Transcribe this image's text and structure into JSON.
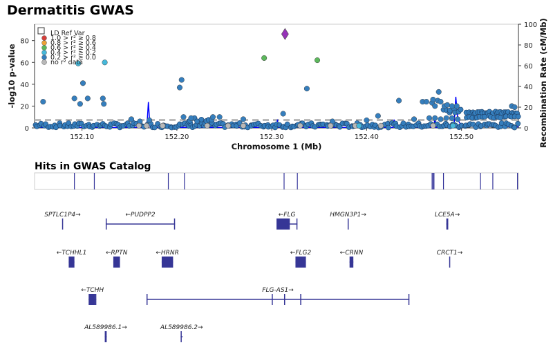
{
  "title": "Dermatitis GWAS",
  "hits_title": "Hits in GWAS Catalog",
  "colors": {
    "ref": "#9632b8",
    "r2_08": "#d43f3a",
    "r2_06": "#eea236",
    "r2_04": "#5cb85c",
    "r2_02": "#46b8da",
    "r2_00": "#357ebd",
    "no_data": "#b8b8b8",
    "recomb_line": "#0000ff",
    "gene": "#363696",
    "hits_line": "#333399",
    "threshold": "#bbbbbb"
  },
  "chart_data": {
    "type": "scatter",
    "xlabel": "Chromosome 1 (Mb)",
    "ylabel": "-log10 p-value",
    "y2label": "Recombination Rate (cM/Mb)",
    "xlim": [
      152.05,
      152.56
    ],
    "ylim": [
      0,
      95
    ],
    "y2lim": [
      0,
      100
    ],
    "xticks": [
      "152.10",
      "152.20",
      "152.30",
      "152.40",
      "152.50"
    ],
    "xtick_values": [
      152.1,
      152.2,
      152.3,
      152.4,
      152.5
    ],
    "yticks": [
      0,
      20,
      40,
      60,
      80
    ],
    "y2ticks": [
      0,
      20,
      40,
      60,
      80,
      100
    ],
    "significance_threshold": 7.3,
    "legend": {
      "placement": "top-left",
      "entries": [
        {
          "label": "LD Ref Var",
          "color_key": "ref",
          "shape": "square-outline"
        },
        {
          "label": "1.0 > r² ≥ 0.8",
          "color_key": "r2_08",
          "shape": "circle"
        },
        {
          "label": "0.8 > r² ≥ 0.6",
          "color_key": "r2_06",
          "shape": "circle"
        },
        {
          "label": "0.6 > r² ≥ 0.4",
          "color_key": "r2_04",
          "shape": "circle"
        },
        {
          "label": "0.4 > r² ≥ 0.2",
          "color_key": "r2_02",
          "shape": "circle"
        },
        {
          "label": "0.2 > r² ≥ 0.0",
          "color_key": "r2_00",
          "shape": "circle"
        },
        {
          "label": "no r² data",
          "color_key": "no_data",
          "shape": "circle"
        }
      ]
    },
    "lead_variant": {
      "x": 152.314,
      "y": 86,
      "color_key": "ref"
    },
    "points": [
      {
        "x": 152.059,
        "y": 24,
        "c": "r2_00"
      },
      {
        "x": 152.092,
        "y": 27,
        "c": "r2_00"
      },
      {
        "x": 152.096,
        "y": 59,
        "c": "r2_02"
      },
      {
        "x": 152.098,
        "y": 22,
        "c": "r2_00"
      },
      {
        "x": 152.101,
        "y": 41,
        "c": "r2_00"
      },
      {
        "x": 152.106,
        "y": 27,
        "c": "r2_00"
      },
      {
        "x": 152.122,
        "y": 27,
        "c": "r2_00"
      },
      {
        "x": 152.123,
        "y": 22,
        "c": "r2_00"
      },
      {
        "x": 152.124,
        "y": 60,
        "c": "r2_02"
      },
      {
        "x": 152.152,
        "y": 8,
        "c": "r2_00"
      },
      {
        "x": 152.161,
        "y": 6,
        "c": "r2_00"
      },
      {
        "x": 152.171,
        "y": 7,
        "c": "r2_00"
      },
      {
        "x": 152.203,
        "y": 37,
        "c": "r2_00"
      },
      {
        "x": 152.205,
        "y": 44,
        "c": "r2_00"
      },
      {
        "x": 152.207,
        "y": 10,
        "c": "r2_00"
      },
      {
        "x": 152.215,
        "y": 9,
        "c": "r2_00"
      },
      {
        "x": 152.238,
        "y": 10,
        "c": "r2_00"
      },
      {
        "x": 152.245,
        "y": 10,
        "c": "r2_00"
      },
      {
        "x": 152.27,
        "y": 8,
        "c": "r2_00"
      },
      {
        "x": 152.292,
        "y": 64,
        "c": "r2_04"
      },
      {
        "x": 152.312,
        "y": 13,
        "c": "r2_00"
      },
      {
        "x": 152.337,
        "y": 36,
        "c": "r2_00"
      },
      {
        "x": 152.348,
        "y": 62,
        "c": "r2_04"
      },
      {
        "x": 152.364,
        "y": 6,
        "c": "r2_00"
      },
      {
        "x": 152.4,
        "y": 7,
        "c": "r2_00"
      },
      {
        "x": 152.412,
        "y": 11,
        "c": "r2_00"
      },
      {
        "x": 152.434,
        "y": 25,
        "c": "r2_00"
      },
      {
        "x": 152.45,
        "y": 8,
        "c": "r2_00"
      },
      {
        "x": 152.459,
        "y": 24,
        "c": "r2_00"
      },
      {
        "x": 152.463,
        "y": 24,
        "c": "r2_00"
      },
      {
        "x": 152.469,
        "y": 23,
        "c": "r2_00"
      },
      {
        "x": 152.47,
        "y": 26,
        "c": "r2_00"
      },
      {
        "x": 152.472,
        "y": 20,
        "c": "r2_00"
      },
      {
        "x": 152.475,
        "y": 25,
        "c": "r2_00"
      },
      {
        "x": 152.476,
        "y": 33,
        "c": "r2_00"
      },
      {
        "x": 152.478,
        "y": 24,
        "c": "r2_00"
      },
      {
        "x": 152.482,
        "y": 20,
        "c": "r2_00"
      },
      {
        "x": 152.485,
        "y": 21,
        "c": "r2_00"
      },
      {
        "x": 152.49,
        "y": 20,
        "c": "r2_00"
      },
      {
        "x": 152.495,
        "y": 20,
        "c": "r2_00"
      },
      {
        "x": 152.553,
        "y": 20,
        "c": "r2_00"
      },
      {
        "x": 152.556,
        "y": 19,
        "c": "r2_00"
      },
      {
        "x": 152.466,
        "y": 9,
        "c": "r2_00"
      },
      {
        "x": 152.472,
        "y": 9,
        "c": "r2_00"
      },
      {
        "x": 152.478,
        "y": 8,
        "c": "r2_00"
      },
      {
        "x": 152.484,
        "y": 9,
        "c": "r2_00"
      },
      {
        "x": 152.49,
        "y": 9,
        "c": "r2_00"
      },
      {
        "x": 152.496,
        "y": 8,
        "c": "r2_00"
      },
      {
        "x": 152.16,
        "y": 2,
        "c": "no_data"
      },
      {
        "x": 152.168,
        "y": 2,
        "c": "no_data"
      },
      {
        "x": 152.185,
        "y": 2,
        "c": "no_data"
      },
      {
        "x": 152.232,
        "y": 2,
        "c": "no_data"
      },
      {
        "x": 152.254,
        "y": 2,
        "c": "no_data"
      },
      {
        "x": 152.27,
        "y": 2,
        "c": "no_data"
      },
      {
        "x": 152.33,
        "y": 2,
        "c": "no_data"
      },
      {
        "x": 152.362,
        "y": 2,
        "c": "no_data"
      },
      {
        "x": 152.388,
        "y": 2,
        "c": "no_data"
      },
      {
        "x": 152.392,
        "y": 2,
        "c": "r2_02"
      },
      {
        "x": 152.415,
        "y": 2,
        "c": "no_data"
      },
      {
        "x": 152.47,
        "y": 2,
        "c": "no_data"
      },
      {
        "x": 152.491,
        "y": 2,
        "c": "r2_02"
      }
    ],
    "background_clusters": [
      {
        "x0": 152.05,
        "x1": 152.56,
        "y0": 0.3,
        "y1": 4.5,
        "n": 230
      },
      {
        "x0": 152.21,
        "x1": 152.24,
        "y0": 6,
        "y1": 9,
        "n": 8
      },
      {
        "x0": 152.505,
        "x1": 152.56,
        "y0": 13,
        "y1": 15,
        "n": 30
      },
      {
        "x0": 152.505,
        "x1": 152.56,
        "y0": 9,
        "y1": 11,
        "n": 20
      },
      {
        "x0": 152.48,
        "x1": 152.5,
        "y0": 14,
        "y1": 17,
        "n": 8
      }
    ],
    "recombination": [
      [
        152.05,
        0.5
      ],
      [
        152.168,
        0.5
      ],
      [
        152.169,
        10
      ],
      [
        152.17,
        25
      ],
      [
        152.171,
        10
      ],
      [
        152.172,
        0.5
      ],
      [
        152.305,
        0.5
      ],
      [
        152.306,
        8
      ],
      [
        152.307,
        0.5
      ],
      [
        152.428,
        0.5
      ],
      [
        152.429,
        8
      ],
      [
        152.43,
        0.5
      ],
      [
        152.471,
        0.5
      ],
      [
        152.472,
        12
      ],
      [
        152.473,
        0.5
      ],
      [
        152.492,
        1
      ],
      [
        152.494,
        30
      ],
      [
        152.496,
        8
      ],
      [
        152.5,
        2
      ],
      [
        152.56,
        1
      ]
    ]
  },
  "gwas_hits": [
    152.092,
    152.113,
    152.191,
    152.208,
    152.313,
    152.327,
    152.469,
    152.47,
    152.471,
    152.481,
    152.52,
    152.533,
    152.559
  ],
  "genes": [
    {
      "label": "SPTLC1P4→",
      "start": 152.079,
      "end": 152.08,
      "row": 0,
      "exons": [
        [
          152.079,
          152.08
        ]
      ]
    },
    {
      "label": "←PUDPP2",
      "start": 152.125,
      "end": 152.198,
      "row": 0,
      "exons": [
        [
          152.125,
          152.126
        ],
        [
          152.197,
          152.198
        ]
      ]
    },
    {
      "label": "←FLG",
      "start": 152.305,
      "end": 152.327,
      "row": 0,
      "exons": [
        [
          152.305,
          152.319
        ],
        [
          152.326,
          152.327
        ]
      ]
    },
    {
      "label": "HMGN3P1→",
      "start": 152.38,
      "end": 152.381,
      "row": 0,
      "exons": [
        [
          152.38,
          152.381
        ]
      ]
    },
    {
      "label": "LCE5A→",
      "start": 152.484,
      "end": 152.486,
      "row": 0,
      "exons": [
        [
          152.484,
          152.486
        ]
      ]
    },
    {
      "label": "←TCHHL1",
      "start": 152.086,
      "end": 152.092,
      "row": 1,
      "exons": [
        [
          152.086,
          152.092
        ]
      ]
    },
    {
      "label": "←RPTN",
      "start": 152.133,
      "end": 152.14,
      "row": 1,
      "exons": [
        [
          152.133,
          152.14
        ]
      ]
    },
    {
      "label": "←HRNR",
      "start": 152.184,
      "end": 152.196,
      "row": 1,
      "exons": [
        [
          152.184,
          152.196
        ]
      ]
    },
    {
      "label": "←FLG2",
      "start": 152.325,
      "end": 152.336,
      "row": 1,
      "exons": [
        [
          152.325,
          152.336
        ]
      ]
    },
    {
      "label": "←CRNN",
      "start": 152.382,
      "end": 152.386,
      "row": 1,
      "exons": [
        [
          152.382,
          152.386
        ]
      ]
    },
    {
      "label": "CRCT1→",
      "start": 152.487,
      "end": 152.488,
      "row": 1,
      "exons": [
        [
          152.487,
          152.488
        ]
      ]
    },
    {
      "label": "←TCHH",
      "start": 152.107,
      "end": 152.115,
      "row": 2,
      "exons": [
        [
          152.107,
          152.114
        ],
        [
          152.114,
          152.115
        ]
      ]
    },
    {
      "label": "FLG-AS1→",
      "start": 152.168,
      "end": 152.445,
      "row": 2,
      "exons": [
        [
          152.168,
          152.169
        ],
        [
          152.3,
          152.301
        ],
        [
          152.313,
          152.314
        ],
        [
          152.33,
          152.331
        ],
        [
          152.444,
          152.445
        ]
      ]
    },
    {
      "label": "AL589986.1→",
      "start": 152.124,
      "end": 152.126,
      "row": 3,
      "exons": [
        [
          152.124,
          152.126
        ]
      ]
    },
    {
      "label": "AL589986.2→",
      "start": 152.204,
      "end": 152.206,
      "row": 3,
      "exons": [
        [
          152.204,
          152.205
        ]
      ]
    }
  ]
}
